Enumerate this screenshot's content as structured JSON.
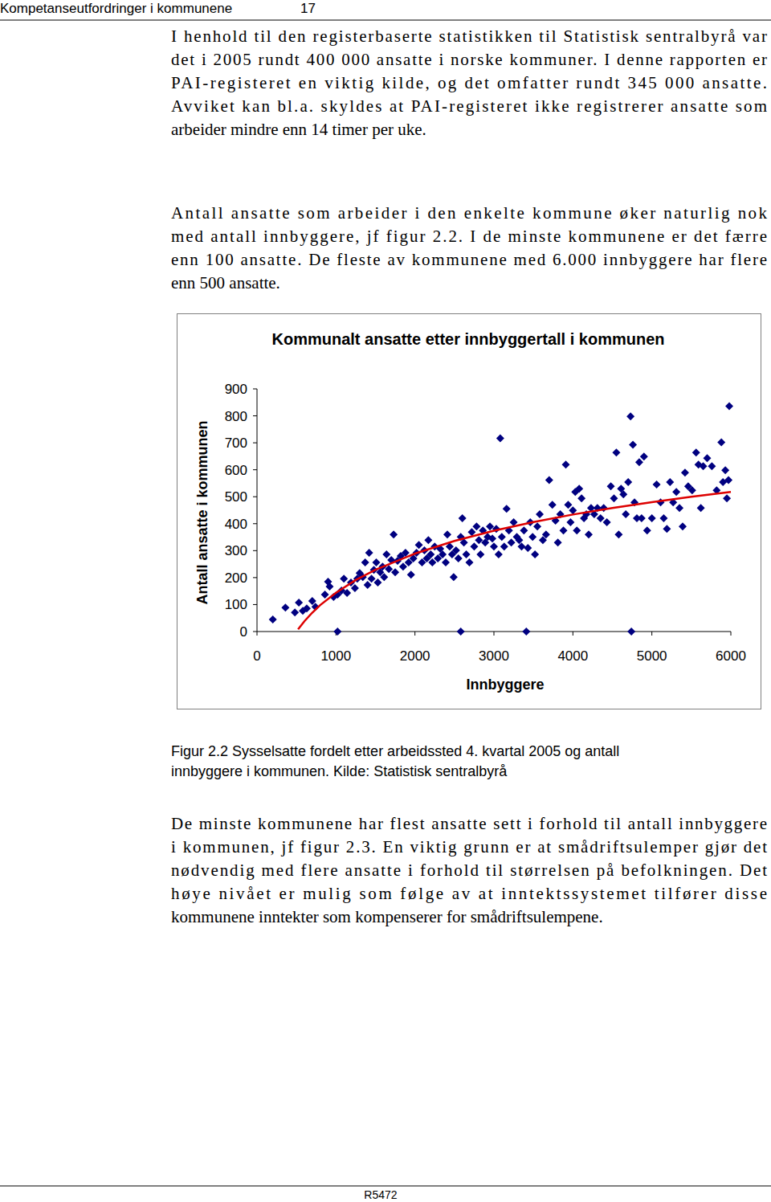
{
  "header": {
    "title": "Kompetanseutfordringer i kommunene",
    "page": "17"
  },
  "paragraphs": [
    [
      "I henhold til den registerbaserte statistikken til Statistisk sentralbyrå var",
      "det i 2005 rundt 400 000 ansatte i norske kommuner. I denne rapporten er",
      "PAI-registeret en viktig kilde, og det omfatter rundt 345 000 ansatte.",
      "Avviket kan bl.a. skyldes at PAI-registeret ikke registrerer ansatte som",
      "arbeider mindre enn 14 timer per uke."
    ],
    [
      "Antall ansatte som arbeider i den enkelte kommune øker naturlig nok",
      "med antall innbyggere, jf figur 2.2. I de minste kommunene er det færre",
      "enn 100 ansatte. De fleste av kommunene med 6.000 innbyggere har flere",
      "enn 500 ansatte."
    ],
    [
      "De minste kommunene har flest ansatte sett i forhold til antall innbyggere",
      "i kommunen, jf figur 2.3. En viktig grunn er at smådriftsulemper gjør det",
      "nødvendig med flere ansatte i forhold til størrelsen på befolkningen. Det",
      "høye nivået er mulig som følge av at inntektssystemet tilfører disse",
      "kommunene inntekter som kompenserer for smådriftsulempene."
    ]
  ],
  "chart_data": {
    "type": "scatter",
    "title": "Kommunalt ansatte etter innbyggertall i kommunen",
    "x_label": "Innbyggere",
    "y_label": "Antall ansatte i kommunen",
    "xlim": [
      0,
      6000
    ],
    "ylim": [
      0,
      900
    ],
    "xticks": [
      0,
      1000,
      2000,
      3000,
      4000,
      5000,
      6000
    ],
    "yticks": [
      0,
      100,
      200,
      300,
      400,
      500,
      600,
      700,
      800,
      900
    ],
    "grid": false,
    "series": [
      {
        "type": "scatter",
        "marker": "diamond",
        "color": "#000080",
        "x": [
          200,
          360,
          480,
          530,
          580,
          630,
          700,
          740,
          860,
          900,
          920,
          970,
          1020,
          1020,
          1070,
          1100,
          1140,
          1190,
          1240,
          1270,
          1300,
          1340,
          1370,
          1420,
          1400,
          1450,
          1480,
          1510,
          1530,
          1560,
          1590,
          1610,
          1640,
          1670,
          1700,
          1730,
          1750,
          1780,
          1820,
          1850,
          1880,
          1920,
          1950,
          1980,
          2020,
          2050,
          2090,
          2120,
          2150,
          2170,
          2200,
          2220,
          2250,
          2290,
          2320,
          2350,
          2390,
          2410,
          2440,
          2470,
          2490,
          2520,
          2550,
          2580,
          2580,
          2600,
          2620,
          2650,
          2690,
          2720,
          2750,
          2780,
          2810,
          2830,
          2860,
          2890,
          2920,
          2950,
          2980,
          3000,
          3030,
          3060,
          3080,
          3100,
          3130,
          3160,
          3190,
          3220,
          3250,
          3290,
          3320,
          3350,
          3380,
          3410,
          3430,
          3460,
          3490,
          3520,
          3550,
          3580,
          3620,
          3660,
          3700,
          3740,
          3780,
          3810,
          3840,
          3880,
          3910,
          3940,
          3970,
          4000,
          4030,
          4050,
          4080,
          4110,
          4140,
          4170,
          4200,
          4230,
          4270,
          4310,
          4350,
          4390,
          4430,
          4480,
          4520,
          4550,
          4580,
          4610,
          4640,
          4670,
          4700,
          4730,
          4740,
          4760,
          4780,
          4810,
          4840,
          4870,
          4900,
          4940,
          5000,
          5060,
          5110,
          5150,
          5190,
          5230,
          5270,
          5310,
          5350,
          5390,
          5420,
          5460,
          5510,
          5560,
          5590,
          5620,
          5650,
          5700,
          5760,
          5820,
          5880,
          5900,
          5930,
          5950,
          5980,
          5970
        ],
        "values": [
          45,
          89,
          71,
          107,
          77,
          86,
          113,
          92,
          137,
          185,
          167,
          128,
          137,
          0,
          152,
          196,
          143,
          182,
          161,
          196,
          217,
          202,
          256,
          292,
          173,
          196,
          229,
          256,
          182,
          220,
          241,
          202,
          286,
          232,
          265,
          360,
          220,
          262,
          280,
          241,
          292,
          256,
          211,
          271,
          292,
          321,
          256,
          301,
          271,
          339,
          286,
          256,
          315,
          271,
          307,
          286,
          256,
          360,
          315,
          286,
          202,
          301,
          271,
          351,
          0,
          420,
          330,
          286,
          256,
          369,
          315,
          390,
          339,
          286,
          375,
          330,
          351,
          390,
          345,
          315,
          381,
          286,
          717,
          351,
          315,
          455,
          375,
          330,
          405,
          351,
          339,
          315,
          375,
          0,
          310,
          405,
          351,
          286,
          390,
          435,
          339,
          360,
          562,
          470,
          411,
          330,
          435,
          375,
          619,
          470,
          405,
          449,
          518,
          375,
          530,
          494,
          420,
          435,
          360,
          458,
          435,
          458,
          420,
          458,
          405,
          539,
          494,
          664,
          360,
          530,
          509,
          435,
          554,
          798,
          0,
          693,
          479,
          420,
          628,
          420,
          649,
          375,
          420,
          545,
          479,
          420,
          381,
          554,
          479,
          518,
          458,
          390,
          589,
          539,
          524,
          664,
          619,
          458,
          613,
          643,
          613,
          524,
          702,
          554,
          598,
          494,
          836,
          562
        ]
      },
      {
        "type": "line",
        "line_style": "solid",
        "color": "#dd0000",
        "x": [
          520,
          600,
          700,
          800,
          1000,
          1250,
          1500,
          2000,
          2500,
          3000,
          3500,
          4000,
          4500,
          5000,
          5500,
          6000
        ],
        "values": [
          8,
          38,
          70,
          98,
          144,
          191,
          229,
          289,
          336,
          374,
          406,
          434,
          458,
          480,
          500,
          518
        ]
      }
    ]
  },
  "caption": [
    "Figur 2.2 Sysselsatte fordelt etter arbeidssted 4. kvartal 2005 og antall",
    "innbyggere i kommunen. Kilde: Statistisk sentralbyrå"
  ],
  "footer": {
    "code": "R5472"
  }
}
